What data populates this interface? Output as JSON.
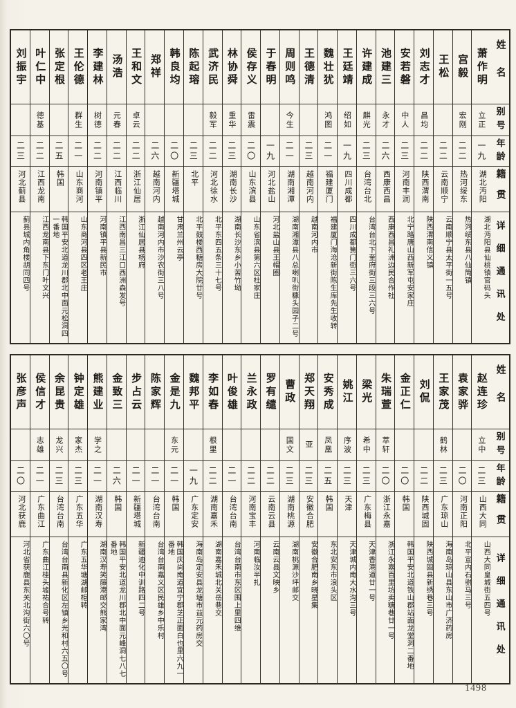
{
  "page": {
    "number": "1498"
  },
  "headers": {
    "name": "姓名",
    "alias": "别号",
    "age": "年龄",
    "origin": "籍贯",
    "address": "详细通讯处"
  },
  "tables": [
    {
      "people": [
        {
          "name": "萧作明",
          "alias": "立正",
          "age": "一九",
          "origin": "湖北沔阳",
          "address": "湖北沔阳县仙桃镇官码头"
        },
        {
          "name": "宫毅",
          "alias": "宏刚",
          "age": "二二",
          "origin": "热河绥东",
          "address": "热河绥东县八仙筒镇"
        },
        {
          "name": "王松",
          "alias": "",
          "age": "二二",
          "origin": "云南顺宁",
          "address": "云南顺宁县太平街一五号"
        },
        {
          "name": "刘志才",
          "alias": "昌均",
          "age": "二二",
          "origin": "陕西渭南",
          "address": "陕西渭南信义镇"
        },
        {
          "name": "安若磐",
          "alias": "中人",
          "age": "二三",
          "origin": "河南丰润",
          "address": "北宁路唐山西新军屯安家庄"
        },
        {
          "name": "池建三",
          "alias": "永才",
          "age": "二六",
          "origin": "西康西昌",
          "address": "西康西昌礼洲边民合作社"
        },
        {
          "name": "许建成",
          "alias": "麒光",
          "age": "二三",
          "origin": "台湾台北",
          "address": "台湾台北下奎府街三段三六号"
        },
        {
          "name": "王廷靖",
          "alias": "绍如",
          "age": "一九",
          "origin": "四川成都",
          "address": "四川成都簧门街三六号"
        },
        {
          "name": "魏壮犹",
          "alias": "鸿图",
          "age": "二一",
          "origin": "福建厦门",
          "address": "福建厦门海沧新街陈生库先生收转"
        },
        {
          "name": "王德清",
          "alias": "",
          "age": "二三",
          "origin": "越南河内",
          "address": "越南河内市"
        },
        {
          "name": "周则鸣",
          "alias": "今生",
          "age": "二一",
          "origin": "湖南湘潭",
          "address": "湖南湘潭县八总喇叭街糠头园子二号"
        },
        {
          "name": "于春明",
          "alias": "",
          "age": "一九",
          "origin": "河北盐山",
          "address": "河北盐山县王帽圈"
        },
        {
          "name": "侯存义",
          "alias": "雷震",
          "age": "二〇",
          "origin": "山东滨县",
          "address": "山东省滨县第六区杜家庄"
        },
        {
          "name": "林协舜",
          "alias": "重华",
          "age": "二三",
          "origin": "湖南长沙",
          "address": "湖南长沙东乡小苦竹坳"
        },
        {
          "name": "武济民",
          "alias": "毅军",
          "age": "二二",
          "origin": "河北徐水",
          "address": "北平东四五条三十七号"
        },
        {
          "name": "陈起瑢",
          "alias": "",
          "age": "二三",
          "origin": "北平",
          "address": "北平鼓楼西糖房大院廿号"
        },
        {
          "name": "韩良均",
          "alias": "",
          "age": "二〇",
          "origin": "新疆塔城",
          "address": "甘肃兰州云亭"
        },
        {
          "name": "郑祥",
          "alias": "",
          "age": "二六",
          "origin": "越南河内",
          "address": "越南河内市沙农街三八号"
        },
        {
          "name": "王和文",
          "alias": "卓云",
          "age": "二二",
          "origin": "浙江仙居",
          "address": "浙江仙居县杨府"
        },
        {
          "name": "汤浩",
          "alias": "元春",
          "age": "二二",
          "origin": "江西临川",
          "address": "江西南昌三江口西洲森发号"
        },
        {
          "name": "李建林",
          "alias": "树德",
          "age": "二二",
          "origin": "河南镇平",
          "address": "河南镇平县新民市"
        },
        {
          "name": "王伦德",
          "alias": "群生",
          "age": "二一",
          "origin": "山东商河",
          "address": "山东商河县四区老王庄"
        },
        {
          "name": "张定根",
          "alias": "",
          "age": "二五",
          "origin": "韩国",
          "address": "韩国平安北道龙川郡北中面元松洞四一番地"
        },
        {
          "name": "叶仁中",
          "alias": "德基",
          "age": "二二",
          "origin": "江西龙南",
          "address": "江西龙南县下东门叶文兴"
        },
        {
          "name": "刘振宇",
          "alias": "",
          "age": "二三",
          "origin": "河北蓟县",
          "address": "蓟县城内角楼胡同四号"
        }
      ]
    },
    {
      "people": [
        {
          "name": "赵连珍",
          "alias": "立中",
          "age": "二三",
          "origin": "山西大同",
          "address": "山西大同皇城街五四号"
        },
        {
          "name": "袁家骅",
          "alias": "",
          "age": "二〇",
          "origin": "河南正阳",
          "address": "北平宣内石驸马三号"
        },
        {
          "name": "王家茂",
          "alias": "鹤林",
          "age": "二三",
          "origin": "广东琼山",
          "address": "海南岛琼山县东山市广济药房"
        },
        {
          "name": "刘侃",
          "alias": "",
          "age": "二二",
          "origin": "陕西城固",
          "address": "陕西城固县新绣巷三号"
        },
        {
          "name": "金正仁",
          "alias": "",
          "age": "二〇",
          "origin": "韩国",
          "address": "韩国平安北道铁山郡站面龙堂洞二番地"
        },
        {
          "name": "朱瑞萱",
          "alias": "萃轩",
          "age": "二〇",
          "origin": "浙江永嘉",
          "address": "浙江永嘉百里坊卖糖巷廿一号"
        },
        {
          "name": "梁光",
          "alias": "希中",
          "age": "二三",
          "origin": "广东梅县",
          "address": "天津香港道廿一号"
        },
        {
          "name": "姚江",
          "alias": "序波",
          "age": "二三",
          "origin": "天津",
          "address": "天津城内南大水沟三号"
        },
        {
          "name": "安秀成",
          "alias": "凤凰",
          "age": "二五",
          "origin": "韩国",
          "address": "东北安东市浪头区"
        },
        {
          "name": "郑天翔",
          "alias": "亚",
          "age": "二三",
          "origin": "安徽合肥",
          "address": "安徽合肥南乡晓星集"
        },
        {
          "name": "曹政",
          "alias": "国文",
          "age": "二三",
          "origin": "湖南桃源",
          "address": "湖南桃源沙坪邮交"
        },
        {
          "name": "罗有缱",
          "alias": "",
          "age": "二二",
          "origin": "云南云县",
          "address": "云南云县文映乡"
        },
        {
          "name": "兰永政",
          "alias": "",
          "age": "二二",
          "origin": "河南宝丰",
          "address": "河南临汝半扎"
        },
        {
          "name": "叶俊雄",
          "alias": "",
          "age": "二一",
          "origin": "台湾台南",
          "address": "台湾台南市东区围上里四维"
        },
        {
          "name": "李如春",
          "alias": "根里",
          "age": "二二",
          "origin": "湖南嘉禾",
          "address": "湖南嘉禾城北关岳巷交"
        },
        {
          "name": "魏邦平",
          "alias": "",
          "age": "一九",
          "origin": "广东定安",
          "address": "海南岛定安县龙塘市益元药房交"
        },
        {
          "name": "金是九",
          "alias": "东元",
          "age": "二一",
          "origin": "韩国",
          "address": "韩国庆尚南道宜宁郡芝正面白也里六九一番地"
        },
        {
          "name": "陈家辉",
          "alias": "",
          "age": "二一",
          "origin": "台湾台南",
          "address": "台湾台南嘉义区民雄乡中乐村"
        },
        {
          "name": "步占云",
          "alias": "",
          "age": "二一",
          "origin": "新疆塔城",
          "address": "新疆迪化中训路四二号"
        },
        {
          "name": "金致三",
          "alias": "",
          "age": "二六",
          "origin": "韩国",
          "address": "韩国平安北道龙川郡北中面元峰洞七八七番地"
        },
        {
          "name": "熊建业",
          "alias": "学之",
          "age": "二一",
          "origin": "湖南汉寿",
          "address": "湖南汉寿笑藤港邮交熊家湾"
        },
        {
          "name": "钟定雄",
          "alias": "家杰",
          "age": "二三",
          "origin": "广东五华",
          "address": "广东五华塘湖邮柜转"
        },
        {
          "name": "余昆贵",
          "alias": "龙兴",
          "age": "二三",
          "origin": "台湾台南",
          "address": "台湾台南县新化区左镇乡光和村六五〇号"
        },
        {
          "name": "侯信才",
          "alias": "志雄",
          "age": "二一",
          "origin": "广东曲江",
          "address": "广东曲江桂头墟祐合号转"
        },
        {
          "name": "张彦声",
          "alias": "",
          "age": "二〇",
          "origin": "河北获鹿",
          "address": "河北省获鹿县东关北沟街六〇号"
        }
      ]
    }
  ]
}
